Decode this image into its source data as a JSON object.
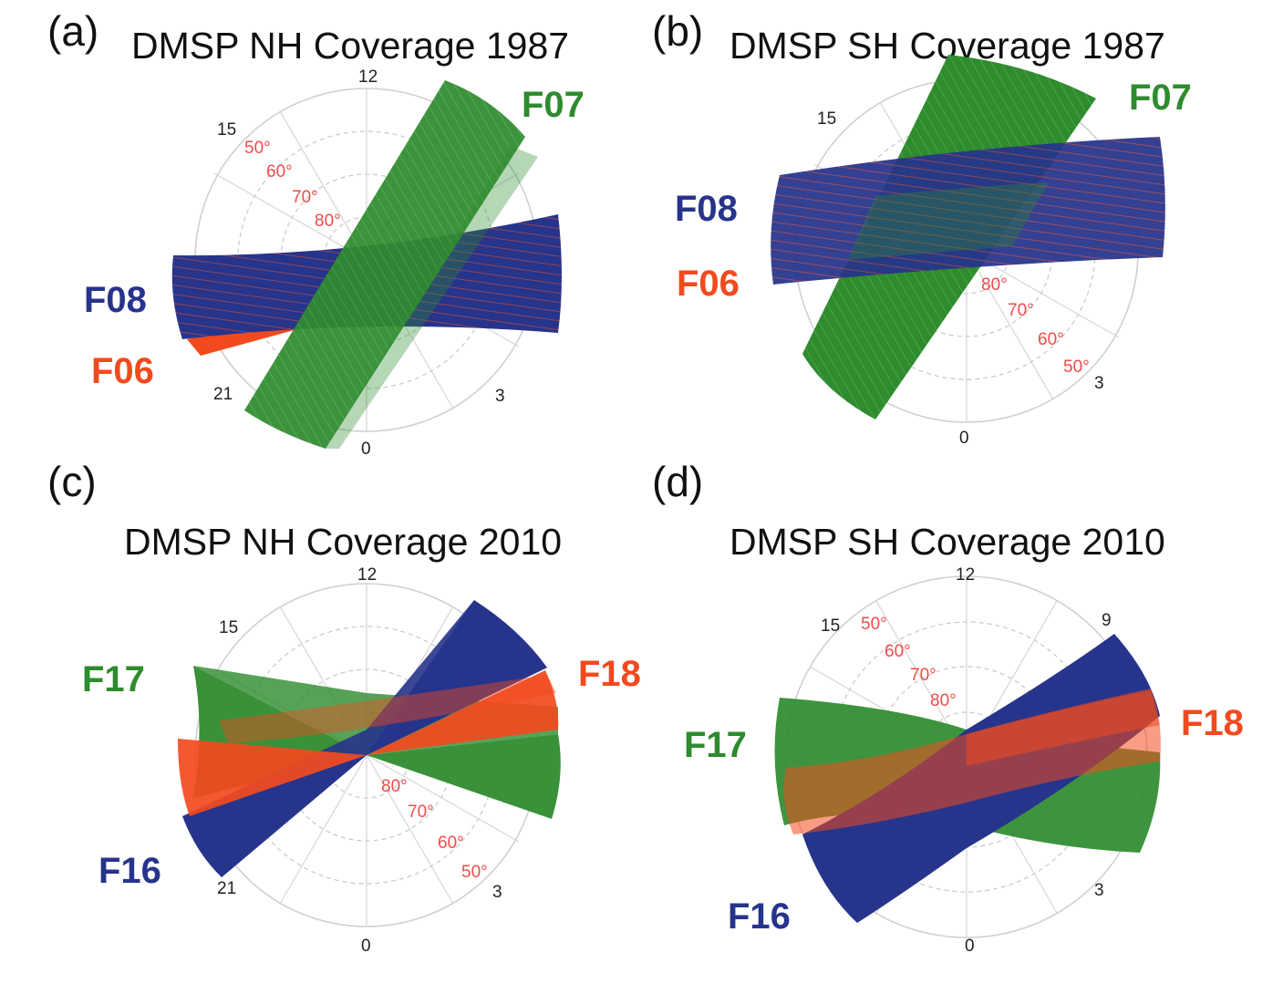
{
  "figure": {
    "panels": [
      {
        "id": "a",
        "label": "(a)",
        "title": "DMSP NH Coverage 1987",
        "mlt_ticks": [
          "12",
          "15",
          "21",
          "0",
          "3"
        ],
        "lat_labels": [
          "50°",
          "60°",
          "70°",
          "80°"
        ],
        "satellites": [
          {
            "name": "F07",
            "color": "#2e8b2e"
          },
          {
            "name": "F08",
            "color": "#27348b"
          },
          {
            "name": "F06",
            "color": "#f24a1e"
          }
        ]
      },
      {
        "id": "b",
        "label": "(b)",
        "title": "DMSP SH Coverage 1987",
        "mlt_ticks": [
          "15",
          "0",
          "3"
        ],
        "lat_labels": [
          "80°",
          "70°",
          "60°",
          "50°"
        ],
        "satellites": [
          {
            "name": "F07",
            "color": "#2e8b2e"
          },
          {
            "name": "F08",
            "color": "#27348b"
          },
          {
            "name": "F06",
            "color": "#f24a1e"
          }
        ]
      },
      {
        "id": "c",
        "label": "(c)",
        "title": "DMSP NH Coverage 2010",
        "mlt_ticks": [
          "12",
          "15",
          "21",
          "0",
          "3"
        ],
        "lat_labels": [
          "80°",
          "70°",
          "60°",
          "50°"
        ],
        "satellites": [
          {
            "name": "F17",
            "color": "#2e8b2e"
          },
          {
            "name": "F18",
            "color": "#f24a1e"
          },
          {
            "name": "F16",
            "color": "#27348b"
          }
        ]
      },
      {
        "id": "d",
        "label": "(d)",
        "title": "DMSP SH Coverage 2010",
        "mlt_ticks": [
          "12",
          "15",
          "9",
          "0",
          "3"
        ],
        "lat_labels": [
          "50°",
          "60°",
          "70°",
          "80°"
        ],
        "satellites": [
          {
            "name": "F17",
            "color": "#2e8b2e"
          },
          {
            "name": "F18",
            "color": "#f24a1e"
          },
          {
            "name": "F16",
            "color": "#27348b"
          }
        ]
      }
    ],
    "colors": {
      "lat_label": "#f04b4b",
      "green": "#2e8b2e",
      "blue": "#27348b",
      "red": "#f24a1e"
    }
  }
}
